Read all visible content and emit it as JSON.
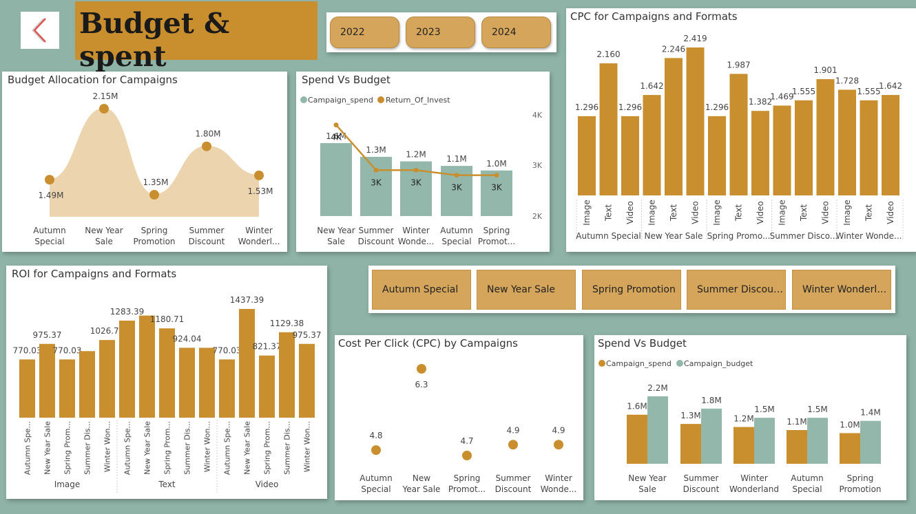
{
  "header": {
    "title": "Budget & spent"
  },
  "colors": {
    "gold": "#c98f2e",
    "teal": "#93b8ab",
    "area": "#ecd5ae",
    "background": "#8fb3a7"
  },
  "icons": {
    "back": "chevron-left-icon"
  },
  "year_filter": [
    "2022",
    "2023",
    "2024"
  ],
  "campaign_filter": [
    "Autumn Special",
    "New Year Sale",
    "Spring Promotion",
    "Summer Discou…",
    "Winter Wonderl…"
  ],
  "budget_allocation": {
    "title": "Budget Allocation for Campaigns",
    "chart_data": {
      "type": "area",
      "categories": [
        [
          "Autumn",
          "Special"
        ],
        [
          "New Year",
          "Sale"
        ],
        [
          "Spring",
          "Promotion"
        ],
        [
          "Summer",
          "Discount"
        ],
        [
          "Winter",
          "Wonderl..."
        ]
      ],
      "values": [
        1.49,
        2.15,
        1.35,
        1.8,
        1.53
      ],
      "labels": [
        "1.49M",
        "2.15M",
        "1.35M",
        "1.80M",
        "1.53M"
      ]
    }
  },
  "spend_vs_roi": {
    "title": "Spend Vs Budget",
    "legend": [
      "Campaign_spend",
      "Return_Of_Invest"
    ],
    "chart_data": {
      "type": "bar",
      "categories": [
        [
          "New Year",
          "Sale"
        ],
        [
          "Summer",
          "Discount"
        ],
        [
          "Winter",
          "Wonde..."
        ],
        [
          "Autumn",
          "Special"
        ],
        [
          "Spring",
          "Promot..."
        ]
      ],
      "series": [
        {
          "name": "Campaign_spend",
          "values": [
            1.6,
            1.3,
            1.2,
            1.1,
            1.0
          ],
          "labels": [
            "1.6M",
            "1.3M",
            "1.2M",
            "1.1M",
            "1.0M"
          ]
        },
        {
          "name": "Return_Of_Invest",
          "values": [
            3.8,
            2.9,
            2.9,
            2.8,
            2.8
          ],
          "labels": [
            "4K",
            "3K",
            "3K",
            "3K",
            "3K"
          ]
        }
      ],
      "y2_ticks": [
        "4K",
        "3K",
        "2K"
      ]
    }
  },
  "cpc_formats": {
    "title": "CPC for Campaigns and Formats",
    "chart_data": {
      "type": "bar",
      "groups": [
        "Autumn Special",
        "New Year Sale",
        "Spring Promo...",
        "Summer Disco...",
        "Winter Wonde..."
      ],
      "formats": [
        "Image",
        "Text",
        "Video"
      ],
      "values": [
        1.296,
        2.16,
        1.296,
        1.642,
        2.246,
        2.419,
        1.296,
        1.987,
        1.382,
        1.469,
        1.555,
        1.901,
        1.728,
        1.555,
        1.642
      ],
      "labels": [
        "1.296",
        "2.160",
        "1.296",
        "1.642",
        "2.246",
        "2.419",
        "1.296",
        "1.987",
        "1.382",
        "1.469",
        "1.555",
        "1.901",
        "1.728",
        "1.555",
        "1.642"
      ]
    }
  },
  "roi_formats": {
    "title": "ROI for Campaigns and Formats",
    "chart_data": {
      "type": "bar",
      "groups": [
        "Image",
        "Text",
        "Video"
      ],
      "categories": [
        "Autumn Spe...",
        "New Year Sale",
        "Spring Prom...",
        "Summer Dis...",
        "Winter Won...",
        "Autumn Spe...",
        "New Year Sale",
        "Spring Prom...",
        "Summer Dis...",
        "Winter Won...",
        "Autumn Spe...",
        "New Year Sale",
        "Spring Prom...",
        "Summer Dis...",
        "Winter Won..."
      ],
      "values": [
        770.03,
        975.37,
        770.03,
        880.0,
        1026.71,
        1283.39,
        1350.0,
        1180.71,
        924.04,
        924.04,
        770.03,
        1437.39,
        821.37,
        1129.38,
        975.37
      ],
      "labels": [
        "770.03",
        "975.37",
        "770.03",
        "",
        "1026.71",
        "1283.39",
        "",
        "1180.71",
        "924.04",
        "",
        "770.03",
        "1437.39",
        "821.37",
        "1129.38",
        "975.37"
      ]
    }
  },
  "cpc_campaigns": {
    "title": "Cost Per Click (CPC) by Campaigns",
    "chart_data": {
      "type": "scatter",
      "categories": [
        [
          "Autumn",
          "Special"
        ],
        [
          "New",
          "Year Sale"
        ],
        [
          "Spring",
          "Promot..."
        ],
        [
          "Summer",
          "Discount"
        ],
        [
          "Winter",
          "Wonde..."
        ]
      ],
      "values": [
        4.8,
        6.3,
        4.7,
        4.9,
        4.9
      ],
      "labels": [
        "4.8",
        "6.3",
        "4.7",
        "4.9",
        "4.9"
      ]
    }
  },
  "spend_vs_budget": {
    "title": "Spend Vs Budget",
    "legend": [
      "Campaign_spend",
      "Campaign_budget"
    ],
    "chart_data": {
      "type": "bar",
      "categories": [
        [
          "New Year",
          "Sale"
        ],
        [
          "Summer",
          "Discount"
        ],
        [
          "Winter",
          "Wonderland"
        ],
        [
          "Autumn",
          "Special"
        ],
        [
          "Spring",
          "Promotion"
        ]
      ],
      "series": [
        {
          "name": "Campaign_spend",
          "values": [
            1.6,
            1.3,
            1.2,
            1.1,
            1.0
          ],
          "labels": [
            "1.6M",
            "1.3M",
            "1.2M",
            "1.1M",
            "1.0M"
          ]
        },
        {
          "name": "Campaign_budget",
          "values": [
            2.2,
            1.8,
            1.5,
            1.5,
            1.4
          ],
          "labels": [
            "2.2M",
            "1.8M",
            "1.5M",
            "1.5M",
            "1.4M"
          ]
        }
      ]
    }
  }
}
